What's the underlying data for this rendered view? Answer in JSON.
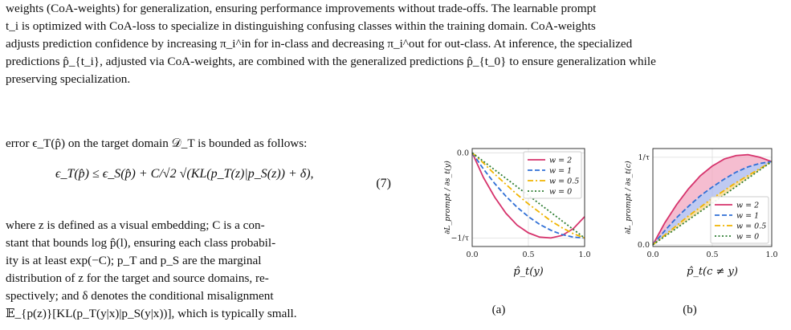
{
  "caption": {
    "line1": "weights (CoA-weights) for generalization, ensuring performance improvements without trade-offs. The learnable prompt",
    "line2": "t_i is optimized with CoA-loss to specialize in distinguishing confusing classes within the training domain. CoA-weights",
    "line3": "adjusts prediction confidence by increasing π_i^in for in-class and decreasing π_i^out for out-class. At inference, the specialized",
    "line4": "predictions p̂_{t_i}, adjusted via CoA-weights, are combined with the generalized predictions p̂_{t_0} to ensure generalization while",
    "line5": "preserving specialization."
  },
  "body": {
    "intro": "error ϵ_T(p̂) on the target domain 𝒟_T is bounded as follows:",
    "equation": "ϵ_T(p̂) ≤ ϵ_S(p̂) + C/√2 √(KL(p_T(z)|p_S(z)) + δ),",
    "equation_number": "(7)",
    "para_line1": "where z is defined as a visual embedding; C is a con-",
    "para_line2": "stant that bounds log p̂(l), ensuring each class probabil-",
    "para_line3": "ity is at least exp(−C); p_T and p_S are the marginal",
    "para_line4": "distribution of z for the target and source domains, re-",
    "para_line5": "spectively; and δ denotes the conditional misalignment",
    "para_line6": "𝔼_{p(z)}[KL(p_T(y|x)|p_S(y|x))], which is typically small."
  },
  "chart_data": [
    {
      "type": "line",
      "panel_label": "(a)",
      "xlabel": "p̂_t(y)",
      "ylabel": "∂L_prompt / ∂s_t(y)",
      "xlim": [
        0,
        1
      ],
      "ylim": [
        -1.1,
        0.05
      ],
      "x_ticks": [
        "0.0",
        "0.5",
        "1.0"
      ],
      "y_ticks": [
        "0.0",
        "−1/τ"
      ],
      "grid": true,
      "legend_position": "top-right",
      "x": [
        0,
        0.1,
        0.2,
        0.3,
        0.4,
        0.5,
        0.6,
        0.7,
        0.8,
        0.9,
        1.0
      ],
      "series": [
        {
          "name": "w = 2",
          "color": "#d6336c",
          "style": "solid",
          "values": [
            0,
            -0.29,
            -0.52,
            -0.71,
            -0.85,
            -0.94,
            -0.99,
            -1.0,
            -0.97,
            -0.89,
            -0.75
          ]
        },
        {
          "name": "w = 1",
          "color": "#2f6fd6",
          "style": "dashed",
          "values": [
            0,
            -0.19,
            -0.36,
            -0.51,
            -0.64,
            -0.75,
            -0.84,
            -0.91,
            -0.96,
            -0.99,
            -1.0
          ]
        },
        {
          "name": "w = 0.5",
          "color": "#f0b400",
          "style": "dashdot",
          "values": [
            0,
            -0.12,
            -0.25,
            -0.37,
            -0.49,
            -0.6,
            -0.7,
            -0.8,
            -0.88,
            -0.95,
            -1.0
          ]
        },
        {
          "name": "w = 0",
          "color": "#2e7d32",
          "style": "dotted",
          "values": [
            0,
            -0.1,
            -0.2,
            -0.3,
            -0.4,
            -0.5,
            -0.6,
            -0.7,
            -0.8,
            -0.9,
            -1.0
          ]
        }
      ]
    },
    {
      "type": "area",
      "panel_label": "(b)",
      "xlabel": "p̂_t(c ≠ y)",
      "ylabel": "∂L_prompt / ∂s_t(c)",
      "xlim": [
        0,
        1
      ],
      "ylim": [
        -0.02,
        1.1
      ],
      "x_ticks": [
        "0.0",
        "0.5",
        "1.0"
      ],
      "y_ticks": [
        "0.0",
        "1/τ"
      ],
      "grid": true,
      "legend_position": "bottom-right",
      "x": [
        0,
        0.1,
        0.2,
        0.3,
        0.4,
        0.5,
        0.6,
        0.7,
        0.8,
        0.9,
        1.0
      ],
      "series": [
        {
          "name": "w = 2",
          "color": "#d6336c",
          "style": "solid",
          "fill": "#f2a7c0",
          "values": [
            0,
            0.25,
            0.46,
            0.64,
            0.79,
            0.9,
            0.98,
            1.02,
            1.03,
            1.0,
            0.95
          ]
        },
        {
          "name": "w = 1",
          "color": "#2f6fd6",
          "style": "dashed",
          "fill": "#a9b8ee",
          "values": [
            0,
            0.16,
            0.31,
            0.44,
            0.56,
            0.66,
            0.75,
            0.83,
            0.89,
            0.93,
            0.95
          ]
        },
        {
          "name": "w = 0.5",
          "color": "#f0b400",
          "style": "dashdot",
          "fill": "#f5d58a",
          "values": [
            0,
            0.11,
            0.22,
            0.33,
            0.43,
            0.53,
            0.62,
            0.71,
            0.79,
            0.87,
            0.95
          ]
        },
        {
          "name": "w = 0",
          "color": "#2e7d32",
          "style": "dotted",
          "fill": "none",
          "values": [
            0,
            0.095,
            0.19,
            0.285,
            0.38,
            0.475,
            0.57,
            0.665,
            0.76,
            0.855,
            0.95
          ]
        }
      ]
    }
  ]
}
